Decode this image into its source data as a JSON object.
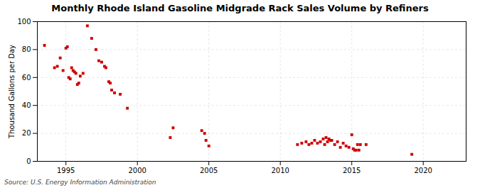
{
  "chart_data": {
    "type": "scatter",
    "title": "Monthly Rhode Island Gasoline Midgrade Rack Sales Volume by Refiners",
    "ylabel": "Thousand Gallons per Day",
    "source": "Source: U.S. Energy Information Administration",
    "color": "#cc0000",
    "marker": "square",
    "grid": true,
    "xlim": [
      1993,
      2023
    ],
    "ylim": [
      0,
      100
    ],
    "xticks": [
      1995,
      2000,
      2005,
      2010,
      2015,
      2020
    ],
    "yticks": [
      0,
      20,
      40,
      60,
      80,
      100
    ],
    "x": [
      1993.5,
      1994.2,
      1994.4,
      1994.6,
      1994.8,
      1995.0,
      1995.1,
      1995.2,
      1995.3,
      1995.4,
      1995.5,
      1995.6,
      1995.7,
      1995.8,
      1995.9,
      1996.0,
      1996.2,
      1996.5,
      1996.8,
      1997.1,
      1997.3,
      1997.5,
      1997.7,
      1997.8,
      1998.0,
      1998.1,
      1998.2,
      1998.4,
      1998.8,
      1999.3,
      2002.3,
      2002.5,
      2004.5,
      2004.7,
      2004.8,
      2005.0,
      2011.2,
      2011.5,
      2011.8,
      2012.0,
      2012.2,
      2012.4,
      2012.6,
      2012.8,
      2013.0,
      2013.1,
      2013.2,
      2013.3,
      2013.4,
      2013.5,
      2013.6,
      2013.8,
      2014.0,
      2014.2,
      2014.4,
      2014.6,
      2014.8,
      2015.0,
      2015.1,
      2015.2,
      2015.3,
      2015.4,
      2015.5,
      2015.6,
      2016.0,
      2019.2
    ],
    "values": [
      83,
      67,
      68,
      74,
      65,
      81,
      82,
      60,
      59,
      67,
      65,
      64,
      63,
      55,
      56,
      61,
      63,
      97,
      88,
      80,
      72,
      71,
      68,
      67,
      57,
      56,
      51,
      49,
      48,
      38,
      17,
      24,
      22,
      20,
      15,
      11,
      12,
      13,
      14,
      12,
      13,
      15,
      13,
      14,
      16,
      12,
      17,
      14,
      16,
      15,
      15,
      12,
      14,
      10,
      13,
      11,
      10,
      19,
      9,
      8,
      8,
      12,
      8,
      12,
      12,
      5
    ]
  }
}
